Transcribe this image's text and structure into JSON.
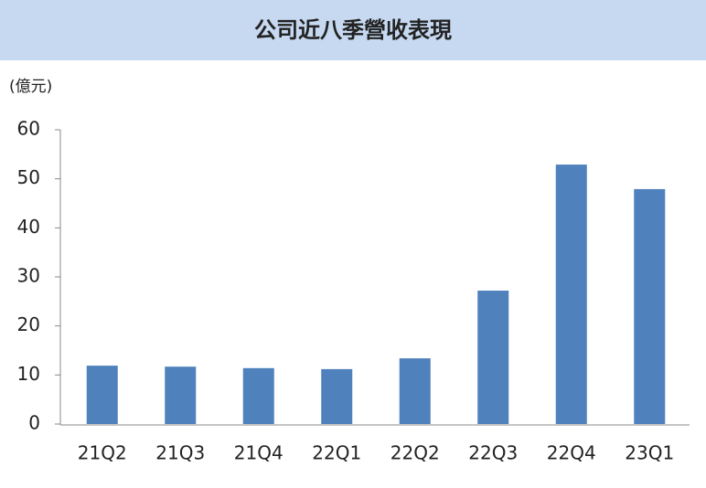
{
  "chart_data": {
    "type": "bar",
    "title": "公司近八季營收表現",
    "y_label": "(億元)",
    "categories": [
      "21Q2",
      "21Q3",
      "21Q4",
      "22Q1",
      "22Q2",
      "22Q3",
      "22Q4",
      "23Q1"
    ],
    "values": [
      11.9,
      11.7,
      11.4,
      11.2,
      13.4,
      27.2,
      52.9,
      47.9
    ],
    "color": "#4f81bd",
    "ylim": [
      0,
      60
    ],
    "yticks": [
      0,
      10,
      20,
      30,
      40,
      50,
      60
    ],
    "grid": false
  }
}
